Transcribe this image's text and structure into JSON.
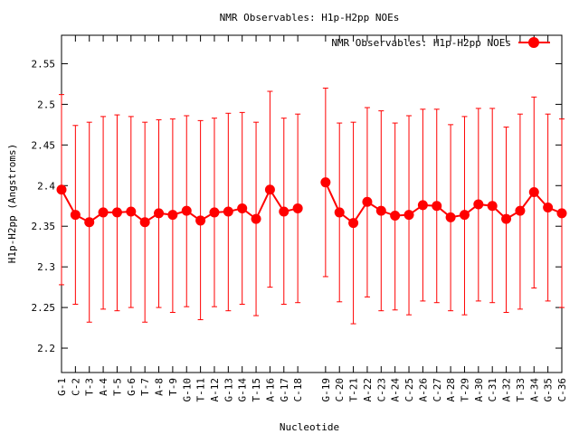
{
  "chart_data": {
    "type": "line",
    "title": "NMR Observables: H1p-H2pp NOEs",
    "xlabel": "Nucleotide",
    "ylabel": "H1p-H2pp (Angstroms)",
    "ylim": [
      2.17,
      2.585
    ],
    "yticks": [
      "2.2",
      "2.25",
      "2.3",
      "2.35",
      "2.4",
      "2.45",
      "2.5",
      "2.55"
    ],
    "legend": "top-right",
    "series_color": "#ff0000",
    "categories": [
      "G-1",
      "C-2",
      "T-3",
      "A-4",
      "T-5",
      "G-6",
      "T-7",
      "A-8",
      "T-9",
      "G-10",
      "T-11",
      "A-12",
      "G-13",
      "G-14",
      "T-15",
      "A-16",
      "G-17",
      "C-18",
      "G-19",
      "C-20",
      "T-21",
      "A-22",
      "C-23",
      "A-24",
      "C-25",
      "A-26",
      "C-27",
      "A-28",
      "T-29",
      "A-30",
      "C-31",
      "A-32",
      "T-33",
      "A-34",
      "G-35",
      "C-36"
    ],
    "x": [
      1,
      2,
      3,
      4,
      5,
      6,
      7,
      8,
      9,
      10,
      11,
      12,
      13,
      14,
      15,
      16,
      17,
      18,
      20,
      21,
      22,
      23,
      24,
      25,
      26,
      27,
      28,
      29,
      30,
      31,
      32,
      33,
      34,
      35,
      36,
      37
    ],
    "series": [
      {
        "name": "NMR Observables: H1p-H2pp NOEs",
        "values": [
          2.395,
          2.364,
          2.355,
          2.367,
          2.367,
          2.368,
          2.355,
          2.366,
          2.364,
          2.369,
          2.357,
          2.367,
          2.368,
          2.372,
          2.359,
          2.395,
          2.368,
          2.372,
          2.404,
          2.367,
          2.354,
          2.38,
          2.369,
          2.363,
          2.364,
          2.376,
          2.375,
          2.361,
          2.364,
          2.377,
          2.375,
          2.359,
          2.369,
          2.392,
          2.373,
          2.366
        ],
        "err_high": [
          2.512,
          2.474,
          2.478,
          2.485,
          2.487,
          2.485,
          2.478,
          2.481,
          2.482,
          2.486,
          2.48,
          2.483,
          2.489,
          2.49,
          2.478,
          2.516,
          2.483,
          2.488,
          2.52,
          2.477,
          2.478,
          2.496,
          2.492,
          2.477,
          2.486,
          2.494,
          2.494,
          2.475,
          2.485,
          2.495,
          2.495,
          2.472,
          2.488,
          2.509,
          2.488,
          2.482
        ],
        "err_low": [
          2.278,
          2.254,
          2.232,
          2.248,
          2.246,
          2.25,
          2.232,
          2.25,
          2.244,
          2.251,
          2.235,
          2.251,
          2.246,
          2.254,
          2.24,
          2.275,
          2.254,
          2.256,
          2.288,
          2.257,
          2.23,
          2.263,
          2.246,
          2.247,
          2.241,
          2.258,
          2.256,
          2.246,
          2.241,
          2.258,
          2.256,
          2.244,
          2.248,
          2.274,
          2.258,
          2.25
        ]
      }
    ]
  }
}
